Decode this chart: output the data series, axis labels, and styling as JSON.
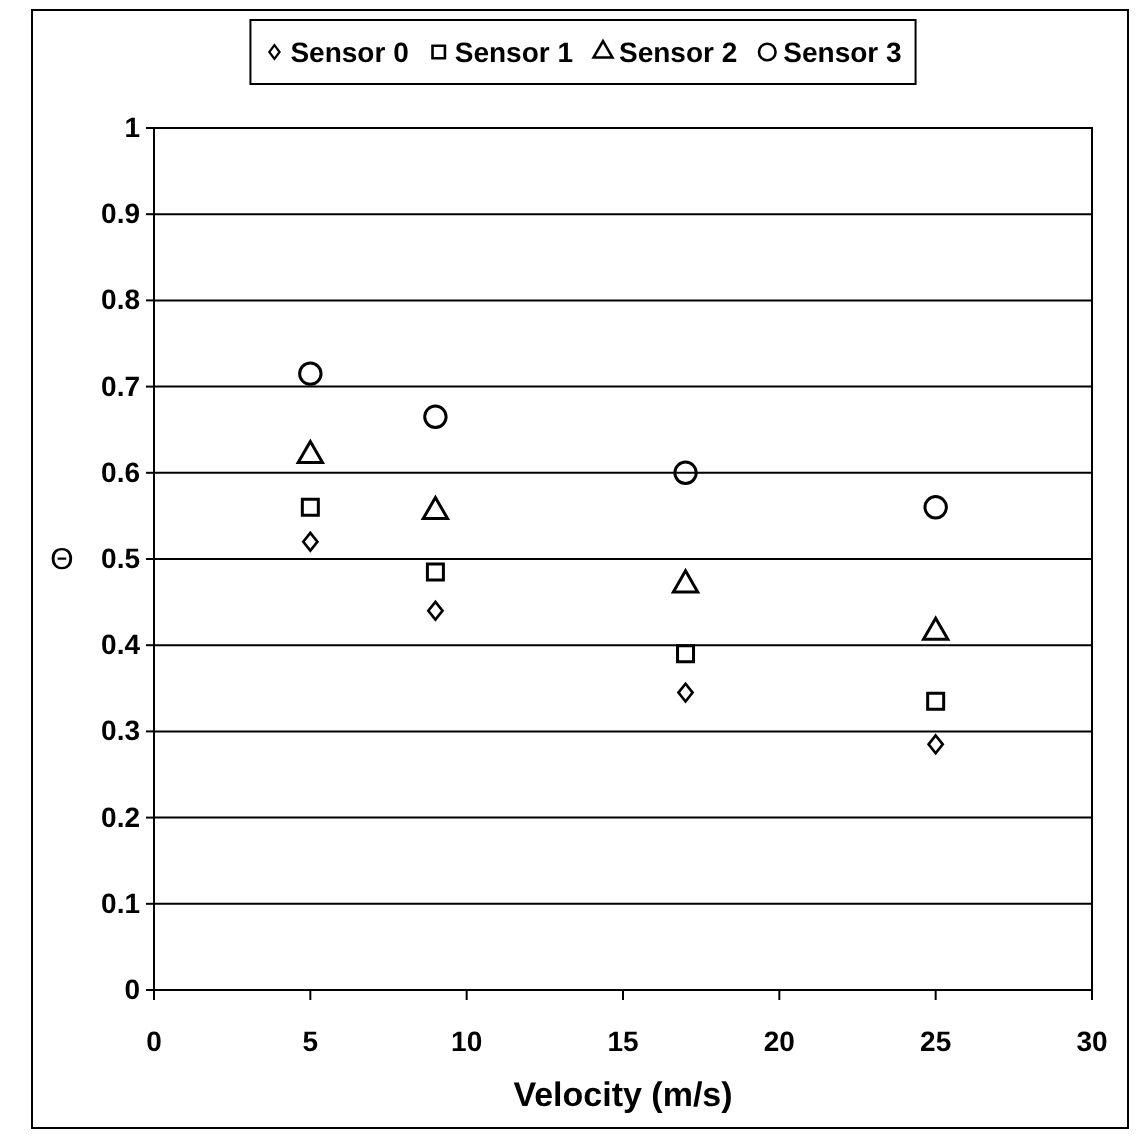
{
  "chart_data": {
    "type": "scatter",
    "xlabel": "Velocity (m/s)",
    "ylabel": "Θ",
    "x": [
      5,
      9,
      17,
      25
    ],
    "series": [
      {
        "name": "Sensor 0",
        "color": "#000000",
        "marker": "diamond",
        "values": [
          0.52,
          0.44,
          0.345,
          0.285
        ]
      },
      {
        "name": "Sensor 1",
        "color": "#000000",
        "marker": "square",
        "values": [
          0.56,
          0.485,
          0.39,
          0.335
        ]
      },
      {
        "name": "Sensor 2",
        "color": "#000000",
        "marker": "triangle",
        "values": [
          0.62,
          0.555,
          0.47,
          0.415
        ]
      },
      {
        "name": "Sensor 3",
        "color": "#000000",
        "marker": "circle",
        "values": [
          0.715,
          0.665,
          0.6,
          0.56
        ]
      }
    ],
    "xlim": [
      0,
      30
    ],
    "xticks": [
      0,
      5,
      10,
      15,
      20,
      25,
      30
    ],
    "ylim": [
      0,
      1
    ],
    "yticks": [
      0,
      0.1,
      0.2,
      0.3,
      0.4,
      0.5,
      0.6,
      0.7,
      0.8,
      0.9,
      1
    ],
    "grid": "y",
    "legend": "top"
  }
}
